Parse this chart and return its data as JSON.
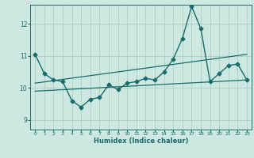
{
  "title": "",
  "xlabel": "Humidex (Indice chaleur)",
  "ylabel": "",
  "background_color": "#cce8e0",
  "grid_color": "#aad0c8",
  "line_color": "#1a6b6b",
  "xlim": [
    -0.5,
    23.5
  ],
  "ylim": [
    8.7,
    12.6
  ],
  "yticks": [
    9,
    10,
    11,
    12
  ],
  "xticks": [
    0,
    1,
    2,
    3,
    4,
    5,
    6,
    7,
    8,
    9,
    10,
    11,
    12,
    13,
    14,
    15,
    16,
    17,
    18,
    19,
    20,
    21,
    22,
    23
  ],
  "series": [
    {
      "x": [
        0,
        1,
        2,
        3,
        4,
        5,
        6,
        7,
        8,
        9,
        10,
        11,
        12,
        13,
        14,
        15,
        16,
        17,
        18,
        19,
        20,
        21,
        22,
        23
      ],
      "y": [
        11.05,
        10.45,
        10.25,
        10.2,
        9.6,
        9.4,
        9.65,
        9.7,
        10.1,
        9.95,
        10.15,
        10.2,
        10.3,
        10.25,
        10.5,
        10.9,
        11.55,
        12.55,
        11.85,
        10.2,
        10.45,
        10.7,
        10.75,
        10.25
      ],
      "marker": "D",
      "markersize": 2.5,
      "linewidth": 1.0,
      "has_marker": true
    },
    {
      "x": [
        0,
        23
      ],
      "y": [
        10.15,
        11.05
      ],
      "marker": null,
      "linewidth": 0.9,
      "has_marker": false
    },
    {
      "x": [
        0,
        23
      ],
      "y": [
        9.9,
        10.25
      ],
      "marker": null,
      "linewidth": 0.9,
      "has_marker": false
    }
  ]
}
